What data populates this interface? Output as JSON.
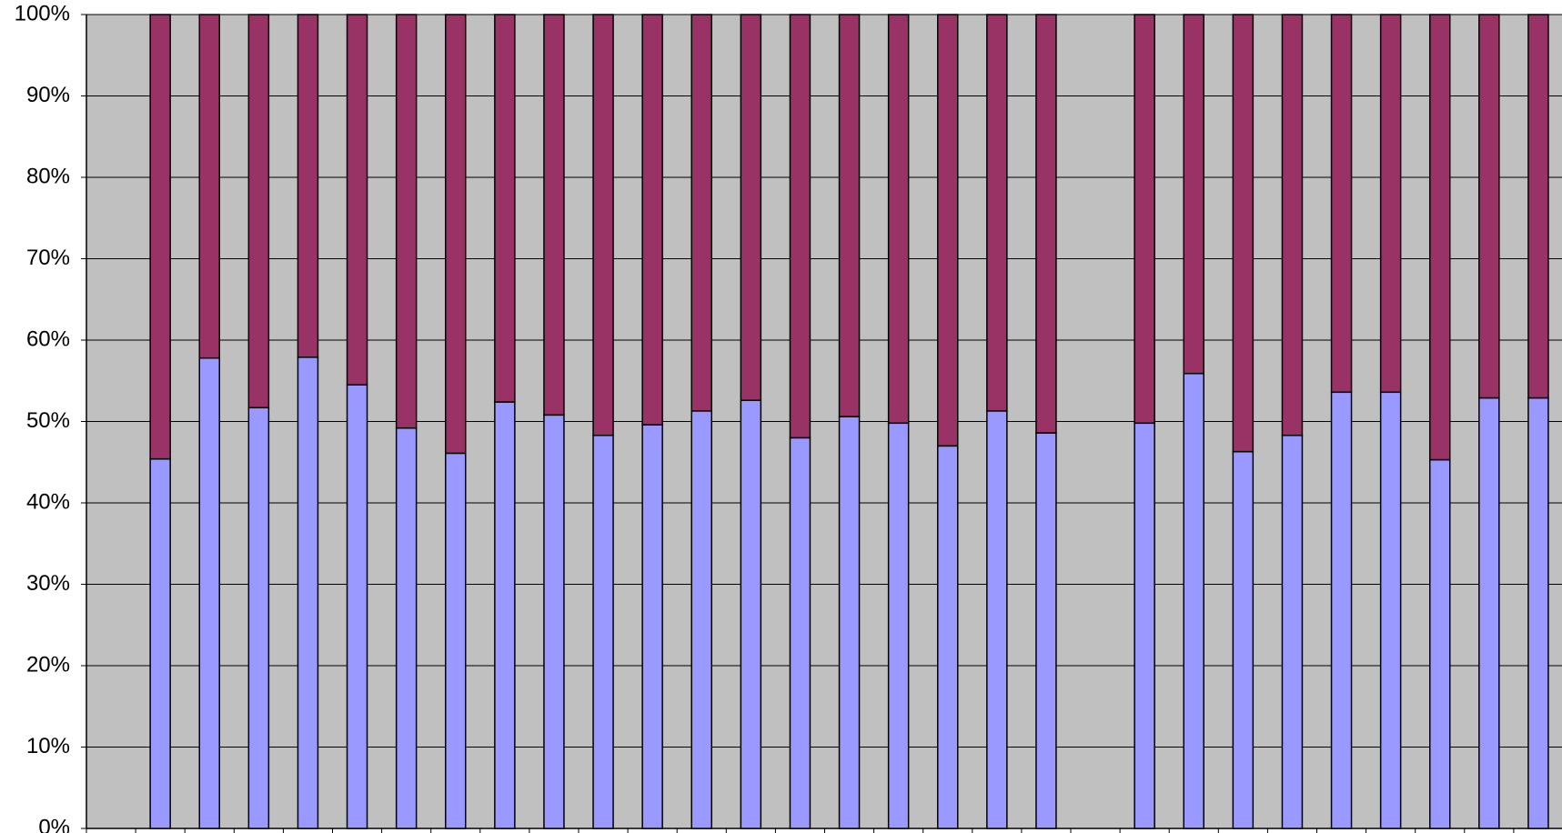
{
  "chart_data": {
    "type": "stacked_bar_100",
    "categories": [
      null,
      null,
      null,
      null,
      null,
      null,
      null,
      null,
      null,
      null,
      null,
      null,
      null,
      null,
      null,
      null,
      null,
      null,
      null,
      null,
      null,
      null,
      null,
      null,
      null,
      null,
      null,
      null,
      null,
      null
    ],
    "series": [
      {
        "color": "#9999ff",
        "values": [
          null,
          45.4,
          57.8,
          51.7,
          57.9,
          54.5,
          49.2,
          46.1,
          52.4,
          50.8,
          48.3,
          49.6,
          51.3,
          52.6,
          48.0,
          50.6,
          49.8,
          47.0,
          51.3,
          48.6,
          null,
          49.8,
          55.9,
          46.3,
          48.3,
          53.6,
          53.6,
          45.3,
          52.9,
          52.9
        ]
      },
      {
        "color": "#993366",
        "values": [
          null,
          54.6,
          42.2,
          48.3,
          42.1,
          45.5,
          50.8,
          53.9,
          47.6,
          49.2,
          51.7,
          50.4,
          48.7,
          47.4,
          52.0,
          49.4,
          50.2,
          53.0,
          48.7,
          51.4,
          null,
          50.2,
          44.1,
          53.7,
          51.7,
          46.4,
          46.4,
          54.7,
          47.1,
          47.1
        ]
      }
    ],
    "ylim": [
      0,
      100
    ],
    "yticks": [
      {
        "value": 0,
        "label": "0%"
      },
      {
        "value": 10,
        "label": "10%"
      },
      {
        "value": 20,
        "label": "20%"
      },
      {
        "value": 30,
        "label": "30%"
      },
      {
        "value": 40,
        "label": "40%"
      },
      {
        "value": 50,
        "label": "50%"
      },
      {
        "value": 60,
        "label": "60%"
      },
      {
        "value": 70,
        "label": "70%"
      },
      {
        "value": 80,
        "label": "80%"
      },
      {
        "value": 90,
        "label": "90%"
      },
      {
        "value": 100,
        "label": "100%"
      }
    ],
    "grid": true,
    "background": "#c0c0c0"
  }
}
